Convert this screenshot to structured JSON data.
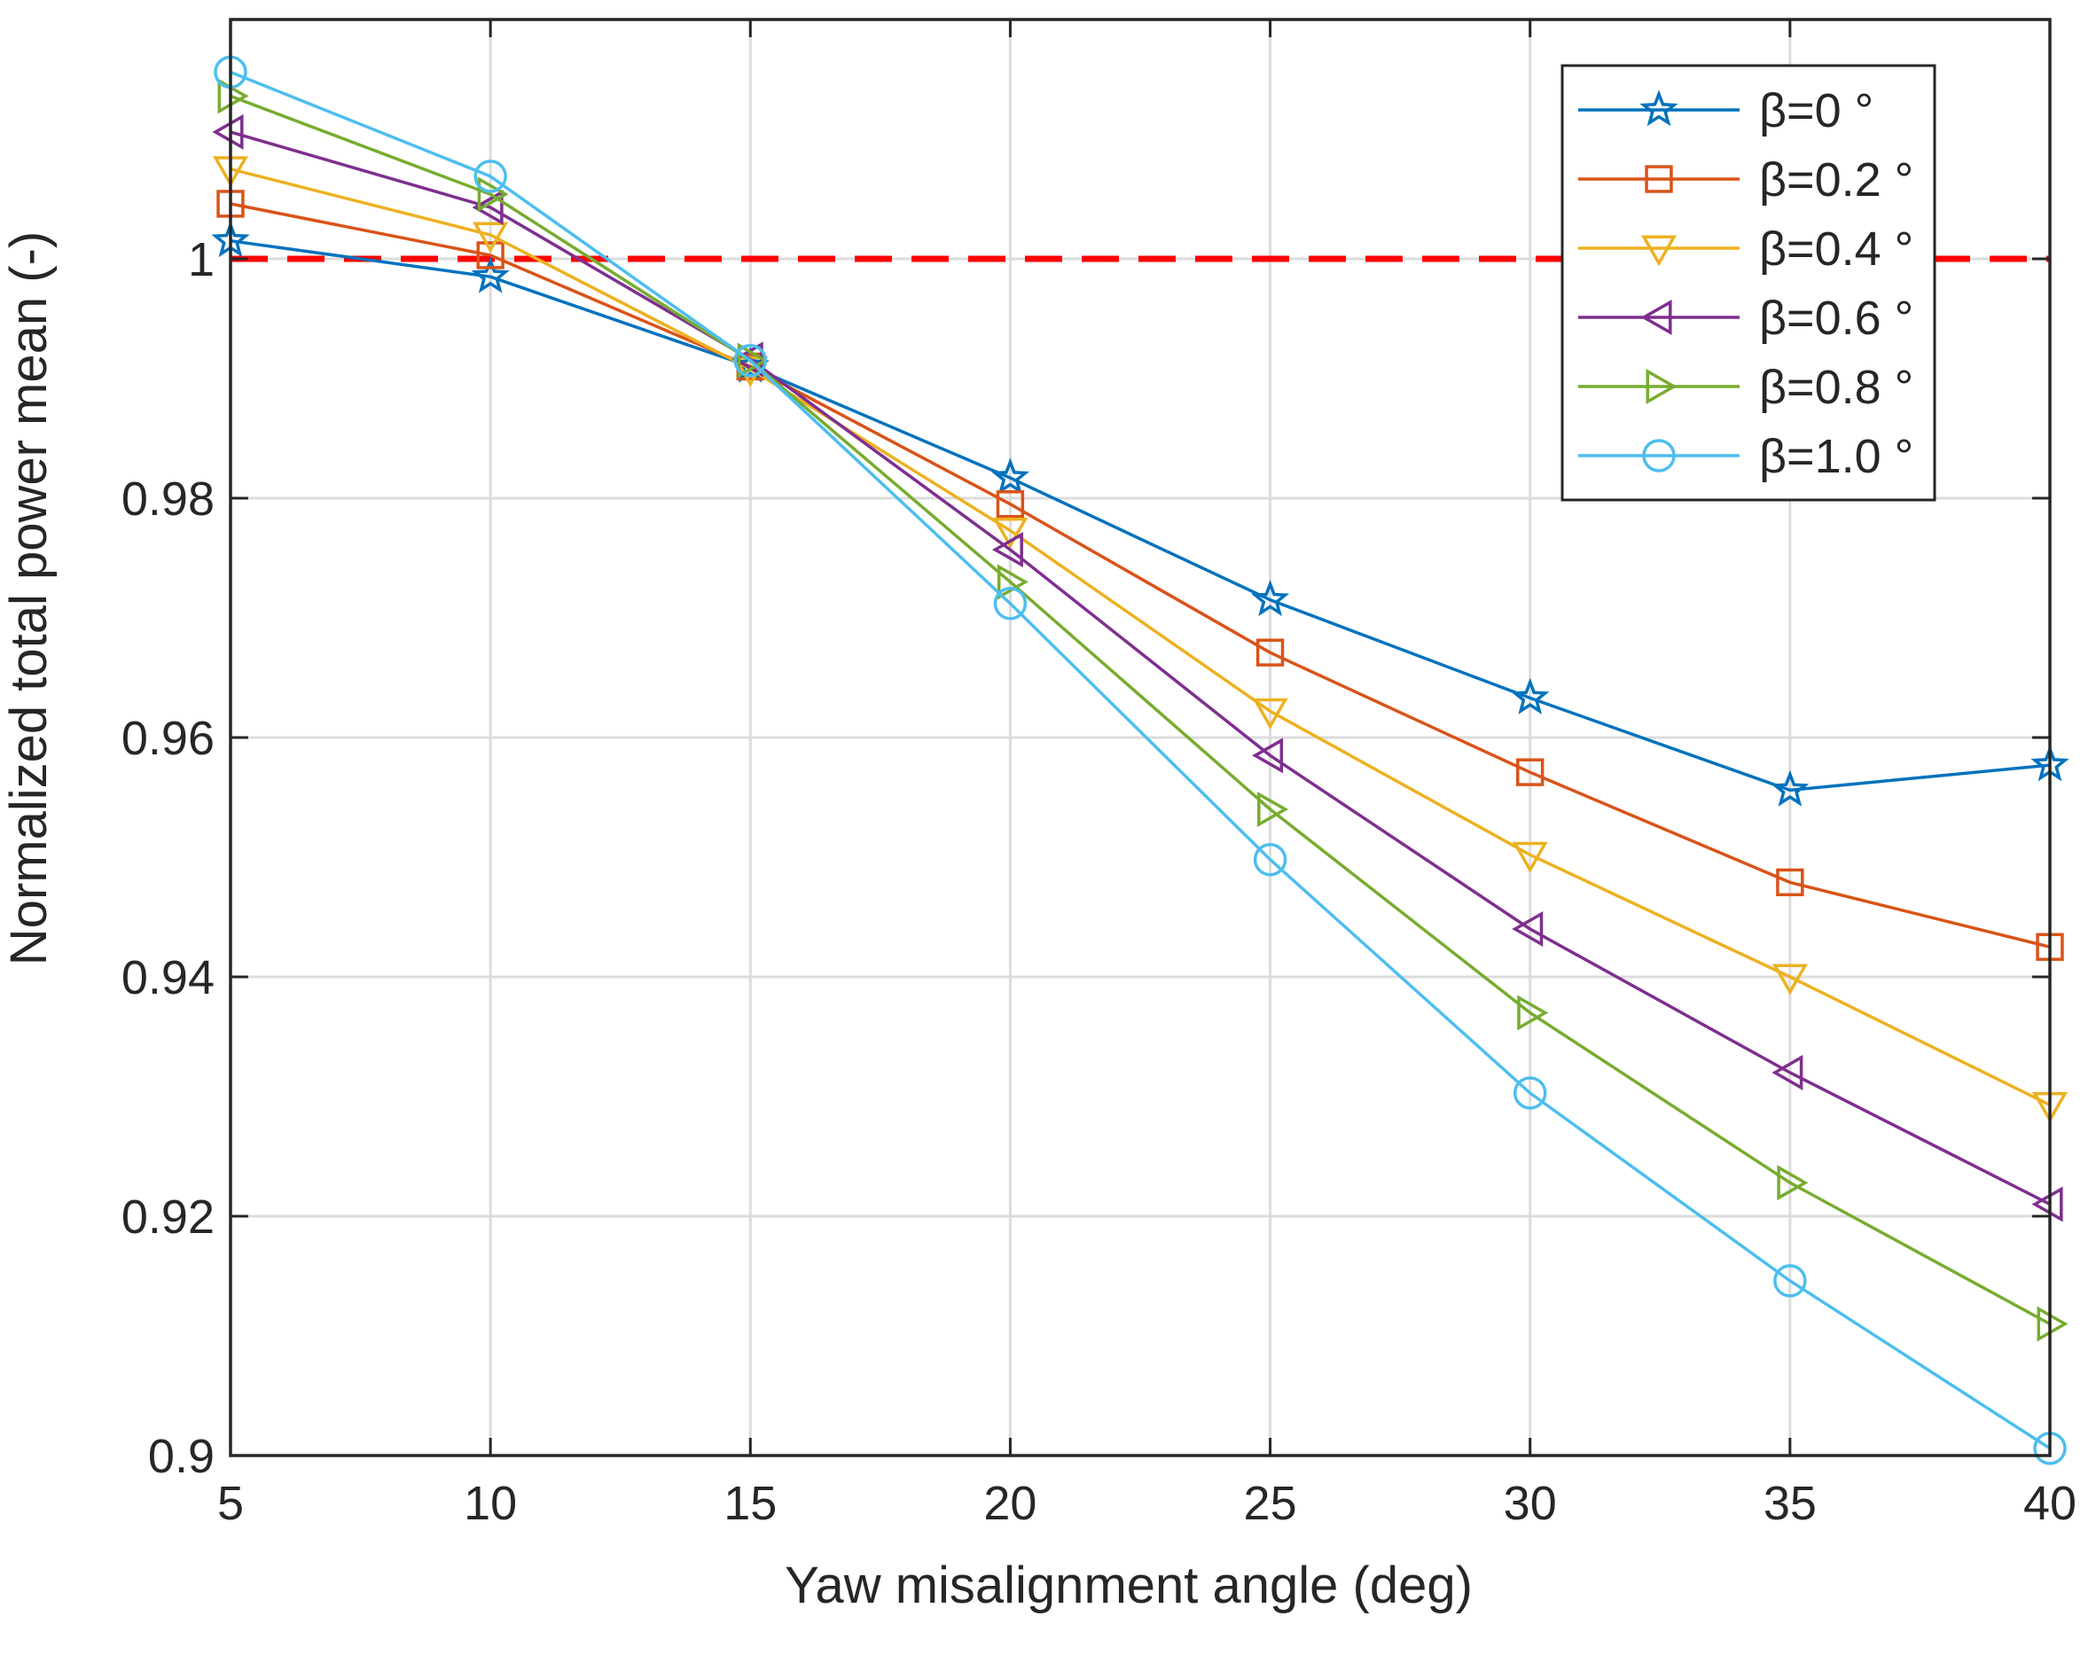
{
  "chart_data": {
    "type": "line",
    "title": "",
    "xlabel": "Yaw misalignment angle (deg)",
    "ylabel": "Normalized total power mean (-)",
    "xlim": [
      5,
      40
    ],
    "ylim": [
      0.9,
      1.02
    ],
    "x": [
      5,
      10,
      15,
      20,
      25,
      30,
      35,
      40
    ],
    "xticks": [
      5,
      10,
      15,
      20,
      25,
      30,
      35,
      40
    ],
    "xtick_labels": [
      "5",
      "10",
      "15",
      "20",
      "25",
      "30",
      "35",
      "40"
    ],
    "yticks": [
      0.9,
      0.92,
      0.94,
      0.96,
      0.98,
      1
    ],
    "ytick_labels": [
      "0.9",
      "0.92",
      "0.94",
      "0.96",
      "0.98",
      "1"
    ],
    "grid": true,
    "legend_position": "top-right",
    "reference_line": {
      "y": 1.0,
      "style": "dashed",
      "color": "#ff0000"
    },
    "series": [
      {
        "name": "β=0 °",
        "marker": "star",
        "color": "#0072bd",
        "values": [
          1.0015,
          0.9985,
          0.991,
          0.9817,
          0.9715,
          0.9633,
          0.9556,
          0.9577
        ]
      },
      {
        "name": "β=0.2 °",
        "marker": "square",
        "color": "#d95319",
        "values": [
          1.0046,
          1.0003,
          0.991,
          0.9795,
          0.9671,
          0.9571,
          0.9479,
          0.9425
        ]
      },
      {
        "name": "β=0.4 °",
        "marker": "triangle-down",
        "color": "#edb120",
        "values": [
          1.0075,
          1.002,
          0.9908,
          0.9773,
          0.9622,
          0.9502,
          0.94,
          0.9293
        ]
      },
      {
        "name": "β=0.6 °",
        "marker": "triangle-left",
        "color": "#7e2f8e",
        "values": [
          1.0106,
          1.0043,
          0.9916,
          0.9757,
          0.9585,
          0.944,
          0.932,
          0.921
        ]
      },
      {
        "name": "β=0.8 °",
        "marker": "triangle-right",
        "color": "#77ac30",
        "values": [
          1.0136,
          1.0054,
          0.9915,
          0.973,
          0.954,
          0.937,
          0.9228,
          0.911
        ]
      },
      {
        "name": "β=1.0 °",
        "marker": "circle",
        "color": "#4dbeee",
        "values": [
          1.0156,
          1.0069,
          0.9915,
          0.9712,
          0.9498,
          0.9303,
          0.9146,
          0.9006
        ]
      }
    ]
  }
}
